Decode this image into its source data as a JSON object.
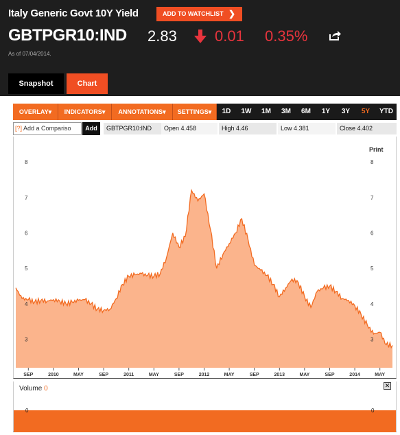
{
  "header": {
    "title": "Italy Generic Govt 10Y Yield",
    "watchlist_label": "ADD TO WATCHLIST",
    "ticker": "GBTPGR10:IND",
    "price": "2.83",
    "change": "0.01",
    "change_pct": "0.35%",
    "as_of": "As of 07/04/2014.",
    "change_direction": "down",
    "colors": {
      "negative": "#e8343d",
      "accent": "#f04e23"
    }
  },
  "tabs": [
    {
      "label": "Snapshot",
      "active": false
    },
    {
      "label": "Chart",
      "active": true
    }
  ],
  "toolbar": {
    "menus": [
      "OVERLAY",
      "INDICATORS",
      "ANNOTATIONS",
      "SETTINGS"
    ],
    "ranges": [
      "1D",
      "1W",
      "1M",
      "3M",
      "6M",
      "1Y",
      "3Y",
      "5Y",
      "YTD"
    ],
    "active_range": "5Y"
  },
  "info": {
    "compare_icon": "[?]",
    "compare_placeholder": "Add a Compariso",
    "add_label": "Add",
    "symbol": "GBTPGR10:IND",
    "open": "Open 4.458",
    "high": "High 4.46",
    "low": "Low 4.381",
    "close": "Close 4.402"
  },
  "print_label": "Print",
  "volume": {
    "label": "Volume",
    "value": "0",
    "axis_left": "0",
    "axis_right": "0",
    "close_icon": "close-icon"
  },
  "chart_data": {
    "type": "area",
    "x_ticks": [
      "SEP",
      "2010",
      "MAY",
      "SEP",
      "2011",
      "MAY",
      "SEP",
      "2012",
      "MAY",
      "SEP",
      "2013",
      "MAY",
      "SEP",
      "2014",
      "MAY"
    ],
    "y_ticks": [
      "3",
      "4",
      "5",
      "6",
      "7",
      "8"
    ],
    "ylim": [
      2.2,
      8.6
    ],
    "xlim": [
      "2009-07",
      "2014-07"
    ],
    "series": [
      {
        "values": [
          [
            "2009-07",
            4.45
          ],
          [
            "2009-08",
            4.15
          ],
          [
            "2009-09",
            4.12
          ],
          [
            "2009-10",
            4.05
          ],
          [
            "2009-11",
            4.1
          ],
          [
            "2009-12",
            4.08
          ],
          [
            "2010-01",
            4.12
          ],
          [
            "2010-02",
            4.08
          ],
          [
            "2010-03",
            4.0
          ],
          [
            "2010-04",
            4.05
          ],
          [
            "2010-05",
            4.1
          ],
          [
            "2010-06",
            4.12
          ],
          [
            "2010-07",
            4.0
          ],
          [
            "2010-08",
            3.85
          ],
          [
            "2010-09",
            3.82
          ],
          [
            "2010-10",
            3.85
          ],
          [
            "2010-11",
            4.15
          ],
          [
            "2010-12",
            4.55
          ],
          [
            "2011-01",
            4.78
          ],
          [
            "2011-02",
            4.82
          ],
          [
            "2011-03",
            4.85
          ],
          [
            "2011-04",
            4.8
          ],
          [
            "2011-05",
            4.78
          ],
          [
            "2011-06",
            4.85
          ],
          [
            "2011-07",
            5.3
          ],
          [
            "2011-08",
            6.0
          ],
          [
            "2011-09",
            5.6
          ],
          [
            "2011-10",
            5.9
          ],
          [
            "2011-11",
            7.2
          ],
          [
            "2011-12",
            6.9
          ],
          [
            "2012-01",
            7.1
          ],
          [
            "2012-02",
            6.1
          ],
          [
            "2012-03",
            5.0
          ],
          [
            "2012-04",
            5.4
          ],
          [
            "2012-05",
            5.7
          ],
          [
            "2012-06",
            6.0
          ],
          [
            "2012-07",
            6.4
          ],
          [
            "2012-08",
            5.8
          ],
          [
            "2012-09",
            5.1
          ],
          [
            "2012-10",
            4.95
          ],
          [
            "2012-11",
            4.8
          ],
          [
            "2012-12",
            4.55
          ],
          [
            "2013-01",
            4.2
          ],
          [
            "2013-02",
            4.45
          ],
          [
            "2013-03",
            4.7
          ],
          [
            "2013-04",
            4.6
          ],
          [
            "2013-05",
            4.2
          ],
          [
            "2013-06",
            3.9
          ],
          [
            "2013-07",
            4.35
          ],
          [
            "2013-08",
            4.45
          ],
          [
            "2013-09",
            4.5
          ],
          [
            "2013-10",
            4.35
          ],
          [
            "2013-11",
            4.15
          ],
          [
            "2013-12",
            4.1
          ],
          [
            "2014-01",
            3.95
          ],
          [
            "2014-02",
            3.7
          ],
          [
            "2014-03",
            3.4
          ],
          [
            "2014-04",
            3.15
          ],
          [
            "2014-05",
            3.2
          ],
          [
            "2014-06",
            2.85
          ],
          [
            "2014-07",
            2.83
          ]
        ]
      }
    ],
    "grid": false,
    "colors": {
      "fill": "#fbb48c",
      "line": "#f26b21"
    }
  }
}
